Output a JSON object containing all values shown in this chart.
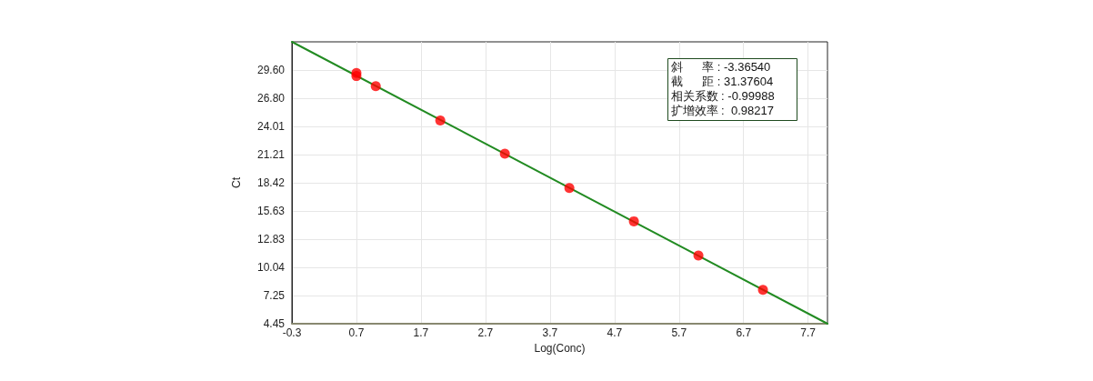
{
  "chart_data": {
    "type": "scatter",
    "xlabel": "Log(Conc)",
    "ylabel": "Ct",
    "xlim": [
      -0.3,
      8.0
    ],
    "xticks": [
      -0.3,
      0.7,
      1.7,
      2.7,
      3.7,
      4.7,
      5.7,
      6.7,
      7.7
    ],
    "ylim": [
      4.45,
      32.39
    ],
    "yticks": [
      4.45,
      7.25,
      10.04,
      12.83,
      15.63,
      18.42,
      21.21,
      24.01,
      {
        "value": 26.8,
        "label": "26.80"
      },
      {
        "value": 29.6,
        "label": "29.60"
      }
    ],
    "grid": true,
    "marker": "circle",
    "series": [
      {
        "color": "#ff0000",
        "x": [
          0.7,
          0.7,
          1.0,
          2.0,
          3.0,
          4.0,
          5.0,
          6.0,
          7.0
        ],
        "values": [
          29.3,
          29.0,
          28.0,
          24.6,
          21.3,
          17.9,
          14.6,
          11.2,
          7.8
        ]
      },
      {
        "type": "line",
        "color": "#228b22",
        "marker": "none",
        "x": [
          -0.3,
          8.0
        ],
        "values": [
          32.39,
          4.45
        ]
      }
    ],
    "annotations": [
      "斜      率 : -3.36540",
      "截      距 : 31.37604",
      "相关系数 : -0.99988",
      "扩增效率 :  0.98217"
    ]
  }
}
